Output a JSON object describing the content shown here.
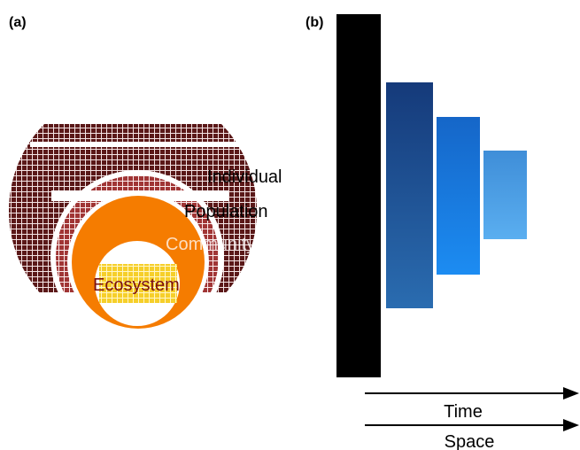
{
  "panels": {
    "a_label": "(a)",
    "b_label": "(b)"
  },
  "levels": {
    "individual": "Individual",
    "population": "Population",
    "community": "Community",
    "ecosystem": "Ecosystem"
  },
  "axes": {
    "time": "Time",
    "space": "Space"
  },
  "colors": {
    "individual": "#6b1f1f",
    "population": "#9e3030",
    "community": "#f57c00",
    "ecosystem": "#f7d23a",
    "bar1": "#000000",
    "bar2": "#1f4f96",
    "bar3": "#1a7fe0",
    "bar4": "#4a9ee8"
  }
}
